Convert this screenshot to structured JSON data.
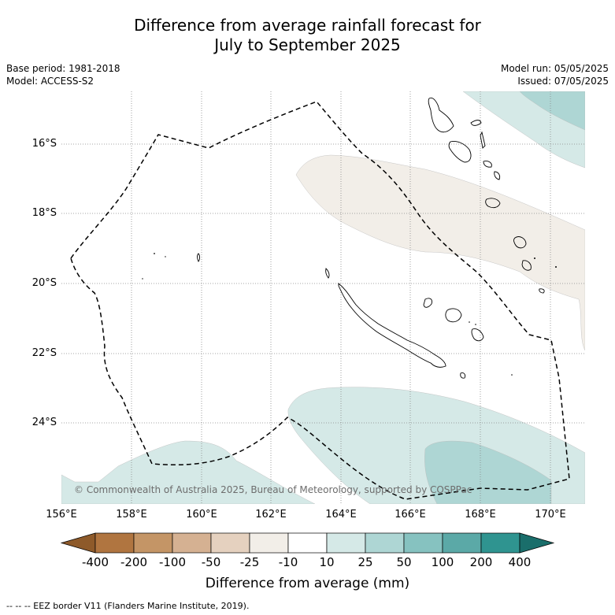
{
  "title_line1": "Difference from average rainfall forecast for",
  "title_line2": "July to September 2025",
  "base_period": "Base period: 1981-2018",
  "model": "Model: ACCESS-S2",
  "model_run": "Model run: 05/05/2025",
  "issued": "Issued: 07/05/2025",
  "lat_labels": [
    "16°S",
    "18°S",
    "20°S",
    "22°S",
    "24°S"
  ],
  "lon_labels": [
    "156°E",
    "158°E",
    "160°E",
    "162°E",
    "164°E",
    "166°E",
    "168°E",
    "170°E"
  ],
  "copyright": "© Commonwealth of Australia 2025, Bureau of Meteorology, supported by COSPPac",
  "colorbar": {
    "ticks": [
      "-400",
      "-200",
      "-100",
      "-50",
      "-25",
      "-10",
      "10",
      "25",
      "50",
      "100",
      "200",
      "400"
    ],
    "colors": [
      "#8e5a2a",
      "#b07540",
      "#c49566",
      "#d5b192",
      "#e5d1bf",
      "#f2eee8",
      "#ffffff",
      "#d5e9e7",
      "#aed6d4",
      "#86c2c0",
      "#5ba9a7",
      "#2f9490",
      "#1a6e6b"
    ],
    "title": "Difference from average (mm)"
  },
  "footnote": "--  --  -- EEZ border V11 (Flanders Marine Institute, 2019).",
  "map_colors": {
    "dry_light": "#f2eee8",
    "wet_light": "#d5e9e7",
    "wet_mid": "#aed6d4",
    "coast": "#000000",
    "grid": "#888888"
  }
}
